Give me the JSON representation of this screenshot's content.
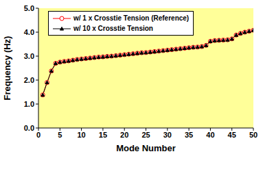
{
  "chart_data": {
    "type": "line",
    "x_label": "Mode Number",
    "y_label": "Frequency (Hz)",
    "x": [
      1,
      2,
      3,
      4,
      5,
      6,
      7,
      8,
      9,
      10,
      11,
      12,
      13,
      14,
      15,
      16,
      17,
      18,
      19,
      20,
      21,
      22,
      23,
      24,
      25,
      26,
      27,
      28,
      29,
      30,
      31,
      32,
      33,
      34,
      35,
      36,
      37,
      38,
      39,
      40,
      41,
      42,
      43,
      44,
      45,
      46,
      47,
      48,
      49,
      50
    ],
    "series": [
      {
        "name": "w/ 1 x Crosstie Tension (Reference)",
        "color": "#ff0000",
        "marker": "circle",
        "line_style": "solid",
        "values": [
          1.38,
          1.9,
          2.38,
          2.7,
          2.75,
          2.78,
          2.8,
          2.83,
          2.86,
          2.88,
          2.9,
          2.92,
          2.94,
          2.96,
          2.97,
          2.99,
          3.0,
          3.02,
          3.04,
          3.06,
          3.08,
          3.1,
          3.12,
          3.14,
          3.15,
          3.17,
          3.19,
          3.21,
          3.23,
          3.25,
          3.27,
          3.29,
          3.31,
          3.33,
          3.35,
          3.37,
          3.38,
          3.4,
          3.45,
          3.62,
          3.65,
          3.66,
          3.67,
          3.68,
          3.72,
          3.88,
          3.95,
          4.0,
          4.04,
          4.08
        ]
      },
      {
        "name": "w/ 10 x Crosstie Tension",
        "color": "#000000",
        "marker": "triangle",
        "line_style": "solid",
        "values": [
          1.38,
          1.9,
          2.38,
          2.7,
          2.75,
          2.78,
          2.8,
          2.83,
          2.86,
          2.88,
          2.9,
          2.92,
          2.94,
          2.96,
          2.97,
          2.99,
          3.0,
          3.02,
          3.04,
          3.06,
          3.08,
          3.1,
          3.12,
          3.14,
          3.15,
          3.17,
          3.19,
          3.21,
          3.23,
          3.25,
          3.27,
          3.29,
          3.31,
          3.33,
          3.35,
          3.37,
          3.38,
          3.4,
          3.45,
          3.62,
          3.65,
          3.66,
          3.67,
          3.68,
          3.72,
          3.88,
          3.95,
          4.0,
          4.04,
          4.08
        ]
      }
    ],
    "xlim": [
      0,
      50
    ],
    "xticks": [
      0,
      5,
      10,
      15,
      20,
      25,
      30,
      35,
      40,
      45,
      50
    ],
    "ylim": [
      0,
      5
    ],
    "yticks": [
      {
        "value": 0,
        "label": "0.0"
      },
      {
        "value": 1,
        "label": "1.0"
      },
      {
        "value": 2,
        "label": "2.0"
      },
      {
        "value": 3,
        "label": "3.0"
      },
      {
        "value": 4,
        "label": "4.0"
      },
      {
        "value": 5,
        "label": "5.0"
      }
    ],
    "legend": "upper left"
  }
}
